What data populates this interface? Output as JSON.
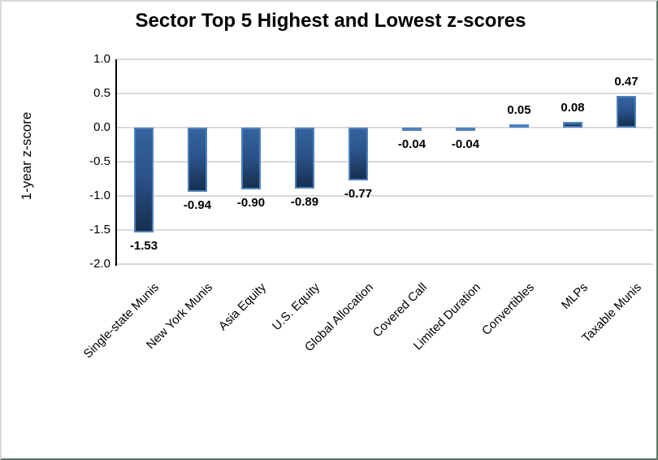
{
  "chart_data": {
    "type": "bar",
    "title": "Sector Top 5 Highest and Lowest z-scores",
    "ylabel": "1-year z-score",
    "xlabel": "",
    "categories": [
      "Single-state Munis",
      "New York Munis",
      "Asia Equity",
      "U.S. Equity",
      "Global Allocation",
      "Covered Call",
      "Limited Duration",
      "Convertibles",
      "MLPs",
      "Taxable Munis"
    ],
    "values": [
      -1.53,
      -0.94,
      -0.9,
      -0.89,
      -0.77,
      -0.04,
      -0.04,
      0.05,
      0.08,
      0.47
    ],
    "data_labels": [
      "-1.53",
      "-0.94",
      "-0.90",
      "-0.89",
      "-0.77",
      "-0.04",
      "-0.04",
      "0.05",
      "0.08",
      "0.47"
    ],
    "ylim": [
      -2.0,
      1.0
    ],
    "ytick_step": 0.5,
    "yticks": [
      "1.0",
      "0.5",
      "0.0",
      "-0.5",
      "-1.0",
      "-1.5",
      "-2.0"
    ],
    "grid": true,
    "legend": "none",
    "colors": {
      "bar_fill_top": "#35639c",
      "bar_fill_bottom": "#16304f",
      "bar_border": "#4e81bd",
      "gridline": "#d9d9d9",
      "axis_line": "#000000",
      "text": "#000000",
      "frame_light": "#d9d9d9",
      "frame_dark": "#587463"
    }
  }
}
